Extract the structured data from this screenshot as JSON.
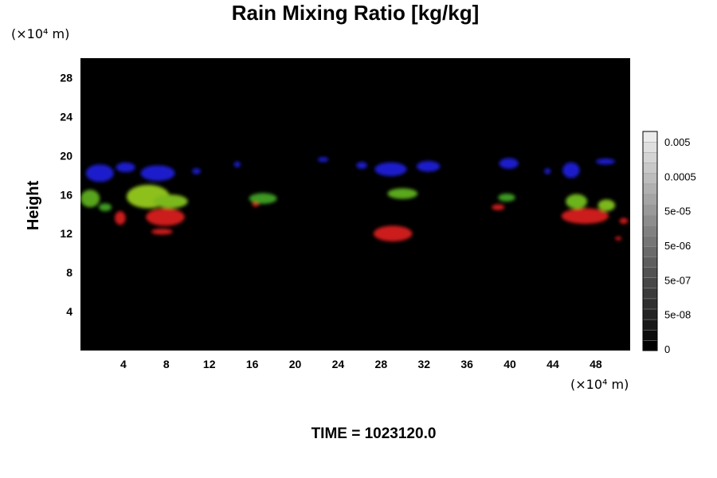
{
  "chart_data": {
    "type": "heatmap",
    "title": "Rain Mixing Ratio [kg/kg]",
    "xlabel": "",
    "ylabel": "Height",
    "x_unit": "(×10⁴ m)",
    "y_unit": "(×10⁴ m)",
    "xlim": [
      0,
      51.2
    ],
    "ylim": [
      0,
      30
    ],
    "x_ticks": [
      "4",
      "8",
      "12",
      "16",
      "20",
      "24",
      "28",
      "32",
      "36",
      "40",
      "44",
      "48"
    ],
    "y_ticks": [
      "4",
      "8",
      "12",
      "16",
      "20",
      "24",
      "28"
    ],
    "background_color": "#000000",
    "colorbar": {
      "labels": [
        "0.005",
        "0.0005",
        "5e-05",
        "5e-06",
        "5e-07",
        "5e-08",
        "0"
      ],
      "levels": 21
    },
    "regions": [
      {
        "color": "#1a1acc",
        "x": 1.8,
        "y": 18.2,
        "rx": 1.3,
        "ry": 0.9
      },
      {
        "color": "#1a1acc",
        "x": 4.2,
        "y": 18.8,
        "rx": 0.9,
        "ry": 0.5
      },
      {
        "color": "#1a1acc",
        "x": 7.2,
        "y": 18.2,
        "rx": 1.6,
        "ry": 0.8
      },
      {
        "color": "#1a1acc",
        "x": 10.8,
        "y": 18.4,
        "rx": 0.4,
        "ry": 0.3
      },
      {
        "color": "#1a1acc",
        "x": 14.6,
        "y": 19.1,
        "rx": 0.3,
        "ry": 0.3
      },
      {
        "color": "#1a1acc",
        "x": 22.6,
        "y": 19.6,
        "rx": 0.5,
        "ry": 0.25
      },
      {
        "color": "#1a1acc",
        "x": 26.2,
        "y": 19.0,
        "rx": 0.5,
        "ry": 0.35
      },
      {
        "color": "#1a1acc",
        "x": 28.9,
        "y": 18.6,
        "rx": 1.5,
        "ry": 0.7
      },
      {
        "color": "#1a1acc",
        "x": 32.4,
        "y": 18.9,
        "rx": 1.1,
        "ry": 0.55
      },
      {
        "color": "#1a1acc",
        "x": 39.9,
        "y": 19.2,
        "rx": 0.9,
        "ry": 0.55
      },
      {
        "color": "#1a1acc",
        "x": 43.5,
        "y": 18.4,
        "rx": 0.3,
        "ry": 0.3
      },
      {
        "color": "#1a1acc",
        "x": 45.7,
        "y": 18.5,
        "rx": 0.8,
        "ry": 0.8
      },
      {
        "color": "#1a1acc",
        "x": 48.9,
        "y": 19.4,
        "rx": 0.9,
        "ry": 0.3
      },
      {
        "color": "#58a41c",
        "x": 0.9,
        "y": 15.6,
        "rx": 0.9,
        "ry": 0.9
      },
      {
        "color": "#3c9a24",
        "x": 2.3,
        "y": 14.7,
        "rx": 0.6,
        "ry": 0.4
      },
      {
        "color": "#8ec01c",
        "x": 6.3,
        "y": 15.8,
        "rx": 2.0,
        "ry": 1.2
      },
      {
        "color": "#7cb81c",
        "x": 8.4,
        "y": 15.3,
        "rx": 1.6,
        "ry": 0.7
      },
      {
        "color": "#3c9a24",
        "x": 17.0,
        "y": 15.6,
        "rx": 1.3,
        "ry": 0.55
      },
      {
        "color": "#5aa81e",
        "x": 30.0,
        "y": 16.1,
        "rx": 1.4,
        "ry": 0.55
      },
      {
        "color": "#3c9a24",
        "x": 39.7,
        "y": 15.7,
        "rx": 0.8,
        "ry": 0.4
      },
      {
        "color": "#6cb41c",
        "x": 46.2,
        "y": 15.3,
        "rx": 1.0,
        "ry": 0.75
      },
      {
        "color": "#7cb81c",
        "x": 49.0,
        "y": 14.9,
        "rx": 0.8,
        "ry": 0.6
      },
      {
        "color": "#cc1a1a",
        "x": 3.7,
        "y": 13.6,
        "rx": 0.5,
        "ry": 0.7
      },
      {
        "color": "#cc1a1a",
        "x": 7.9,
        "y": 13.7,
        "rx": 1.8,
        "ry": 0.9
      },
      {
        "color": "#cc1a1a",
        "x": 7.6,
        "y": 12.2,
        "rx": 1.0,
        "ry": 0.3
      },
      {
        "color": "#cc1a1a",
        "x": 16.3,
        "y": 15.0,
        "rx": 0.3,
        "ry": 0.25
      },
      {
        "color": "#cc1a1a",
        "x": 29.1,
        "y": 12.0,
        "rx": 1.8,
        "ry": 0.8
      },
      {
        "color": "#cc1a1a",
        "x": 38.9,
        "y": 14.7,
        "rx": 0.6,
        "ry": 0.3
      },
      {
        "color": "#cc1a1a",
        "x": 47.0,
        "y": 13.8,
        "rx": 2.2,
        "ry": 0.8
      },
      {
        "color": "#cc1a1a",
        "x": 50.6,
        "y": 13.3,
        "rx": 0.4,
        "ry": 0.3
      },
      {
        "color": "#cc1a1a",
        "x": 50.1,
        "y": 11.5,
        "rx": 0.3,
        "ry": 0.2
      }
    ]
  },
  "footer": {
    "time_label": "TIME = 1023120.0"
  }
}
